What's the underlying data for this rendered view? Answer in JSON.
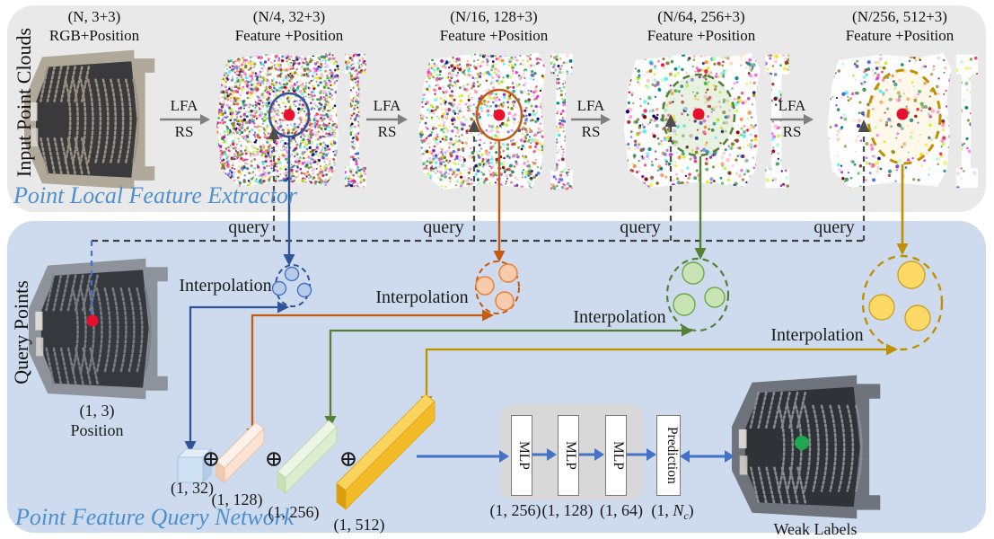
{
  "extractor_panel": {
    "side_label": "Input Point Clouds",
    "title": "Point Local Feature Extractor",
    "stages": [
      {
        "dims": "(N, 3+3)",
        "type_label": "RGB+Position"
      },
      {
        "dims": "(N/4, 32+3)",
        "type_label": "Feature +Position"
      },
      {
        "dims": "(N/16, 128+3)",
        "type_label": "Feature +Position"
      },
      {
        "dims": "(N/64, 256+3)",
        "type_label": "Feature +Position"
      },
      {
        "dims": "(N/256, 512+3)",
        "type_label": "Feature +Position"
      }
    ],
    "lfa_label": "LFA",
    "rs_label": "RS"
  },
  "query_panel": {
    "side_label": "Query Points",
    "title": "Point Feature Query Network",
    "query_label": "query",
    "interpolation_label": "Interpolation",
    "query_point": {
      "dims": "(1, 3)",
      "type_label": "Position"
    },
    "concat_symbol": "⊕",
    "feature_vectors": [
      {
        "label": "(1, 32)"
      },
      {
        "label": "(1, 128)"
      },
      {
        "label": "(1, 256)"
      },
      {
        "label": "(1, 512)"
      }
    ],
    "mlp_blocks": [
      "MLP",
      "MLP",
      "MLP"
    ],
    "prediction_label": "Prediction",
    "mlp_dims": [
      "(1, 256)",
      "(1, 128)",
      "(1, 64)"
    ],
    "nc_dim": {
      "prefix": "(1, ",
      "var": "N",
      "sub": "c",
      "suffix": ")"
    },
    "weak_labels_caption": "Weak Labels"
  },
  "colors": {
    "level1_blue": "#2f5597",
    "level2_orange": "#c55a11",
    "level3_green": "#538135",
    "level4_gold": "#bf9000",
    "arrow_blue": "#4472c4",
    "title_blue": "#4e8fcd",
    "top_panel_bg": "#e9e9e9",
    "bottom_panel_bg": "#cedbee",
    "marker_red": "#e8112d",
    "marker_green": "#1fa84f"
  }
}
